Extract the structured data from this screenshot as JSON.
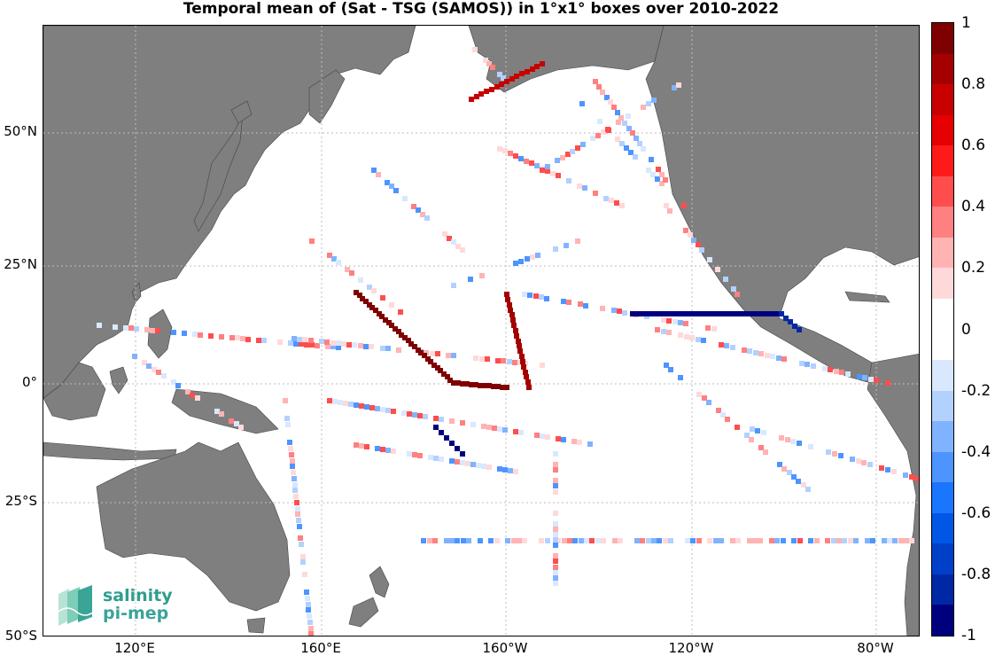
{
  "title": "Temporal mean of (Sat - TSG (SAMOS)) in 1°x1° boxes over 2010-2022",
  "colors": {
    "land": "#7f7f7f",
    "grid": "#bdbdbd",
    "positive_dark": "#7f0000",
    "negative_dark": "#00007f"
  },
  "lat_labels": [
    {
      "label": "50°N"
    },
    {
      "label": "25°N"
    },
    {
      "label": "0°"
    },
    {
      "label": "25°S"
    },
    {
      "label": "50°S"
    }
  ],
  "lon_labels": [
    {
      "label": "120°E"
    },
    {
      "label": "160°E"
    },
    {
      "label": "160°W"
    },
    {
      "label": "120°W"
    },
    {
      "label": "80°W"
    }
  ],
  "colorbar": {
    "min": -1,
    "max": 1,
    "step": 0.1,
    "tick_labels": [
      "1",
      "0.8",
      "0.6",
      "0.4",
      "0.2",
      "0",
      "-0.2",
      "-0.4",
      "-0.6",
      "-0.8",
      "-1"
    ],
    "colors_top_to_bottom": [
      "#7f0000",
      "#a50000",
      "#c80000",
      "#e60000",
      "#ff1a1a",
      "#ff4d4d",
      "#ff8080",
      "#ffb3b3",
      "#ffd9d9",
      "#ffffff",
      "#ffffff",
      "#d9e8ff",
      "#b3d1ff",
      "#80b3ff",
      "#4d94ff",
      "#1a75ff",
      "#0057e6",
      "#0040c8",
      "#0028a5",
      "#00007f"
    ]
  },
  "logo": {
    "line1": "salinity",
    "line2": "pi-mep"
  }
}
